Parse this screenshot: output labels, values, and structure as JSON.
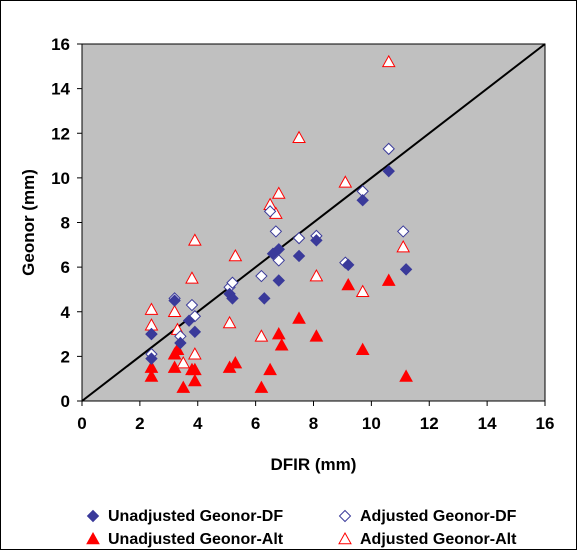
{
  "chart_data": {
    "type": "scatter",
    "title": "",
    "xlabel": "DFIR (mm)",
    "ylabel": "Geonor (mm)",
    "xlim": [
      0,
      16
    ],
    "ylim": [
      0,
      16
    ],
    "xticks": [
      0,
      2,
      4,
      6,
      8,
      10,
      12,
      14,
      16
    ],
    "yticks": [
      0,
      2,
      4,
      6,
      8,
      10,
      12,
      14,
      16
    ],
    "grid": false,
    "plot_background": "#c0c0c0",
    "legend_position": "bottom",
    "reference_line": {
      "from": [
        0,
        0
      ],
      "to": [
        16,
        16
      ],
      "color": "#000000"
    },
    "series": [
      {
        "name": "Unadjusted Geonor-DF",
        "marker": "diamond-filled",
        "color": "#3a3a9a",
        "points": [
          [
            2.4,
            1.9
          ],
          [
            2.4,
            3.0
          ],
          [
            3.2,
            4.5
          ],
          [
            3.4,
            2.6
          ],
          [
            3.7,
            3.6
          ],
          [
            3.9,
            3.1
          ],
          [
            5.1,
            4.8
          ],
          [
            5.2,
            4.6
          ],
          [
            6.3,
            4.6
          ],
          [
            6.6,
            6.6
          ],
          [
            6.8,
            6.8
          ],
          [
            6.8,
            5.4
          ],
          [
            7.5,
            6.5
          ],
          [
            8.1,
            7.2
          ],
          [
            9.2,
            6.1
          ],
          [
            9.7,
            9.0
          ],
          [
            10.6,
            10.3
          ],
          [
            11.2,
            5.9
          ]
        ]
      },
      {
        "name": "Adjusted Geonor-DF",
        "marker": "diamond-open",
        "color": "#3a3a9a",
        "points": [
          [
            2.4,
            2.1
          ],
          [
            2.4,
            3.0
          ],
          [
            3.2,
            4.6
          ],
          [
            3.4,
            2.9
          ],
          [
            3.8,
            4.3
          ],
          [
            3.9,
            3.8
          ],
          [
            5.1,
            5.1
          ],
          [
            5.2,
            5.3
          ],
          [
            6.2,
            5.6
          ],
          [
            6.5,
            8.5
          ],
          [
            6.7,
            7.6
          ],
          [
            6.8,
            6.3
          ],
          [
            7.5,
            7.3
          ],
          [
            8.1,
            7.4
          ],
          [
            9.1,
            6.2
          ],
          [
            9.7,
            9.4
          ],
          [
            10.6,
            11.3
          ],
          [
            11.1,
            7.6
          ]
        ]
      },
      {
        "name": "Unadjusted Geonor-Alt",
        "marker": "triangle-filled",
        "color": "#ff0000",
        "points": [
          [
            2.4,
            1.1
          ],
          [
            2.4,
            1.5
          ],
          [
            3.2,
            1.5
          ],
          [
            3.2,
            2.1
          ],
          [
            3.3,
            2.3
          ],
          [
            3.5,
            0.6
          ],
          [
            3.8,
            1.4
          ],
          [
            3.9,
            0.9
          ],
          [
            3.9,
            1.4
          ],
          [
            5.1,
            1.5
          ],
          [
            5.3,
            1.7
          ],
          [
            6.2,
            0.6
          ],
          [
            6.5,
            1.4
          ],
          [
            6.8,
            3.0
          ],
          [
            6.9,
            2.5
          ],
          [
            7.5,
            3.7
          ],
          [
            8.1,
            2.9
          ],
          [
            9.2,
            5.2
          ],
          [
            9.7,
            2.3
          ],
          [
            10.6,
            5.4
          ],
          [
            11.2,
            1.1
          ]
        ]
      },
      {
        "name": "Adjusted Geonor-Alt",
        "marker": "triangle-open",
        "color": "#ff0000",
        "points": [
          [
            2.4,
            4.1
          ],
          [
            2.4,
            3.4
          ],
          [
            3.2,
            4.0
          ],
          [
            3.3,
            3.2
          ],
          [
            3.5,
            1.7
          ],
          [
            3.8,
            5.5
          ],
          [
            3.9,
            7.2
          ],
          [
            3.9,
            2.1
          ],
          [
            5.1,
            3.5
          ],
          [
            5.3,
            6.5
          ],
          [
            6.2,
            2.9
          ],
          [
            6.5,
            8.8
          ],
          [
            6.7,
            8.4
          ],
          [
            6.8,
            9.3
          ],
          [
            7.5,
            11.8
          ],
          [
            8.1,
            5.6
          ],
          [
            9.1,
            9.8
          ],
          [
            9.7,
            4.9
          ],
          [
            10.6,
            15.2
          ],
          [
            11.1,
            6.9
          ]
        ]
      }
    ]
  }
}
